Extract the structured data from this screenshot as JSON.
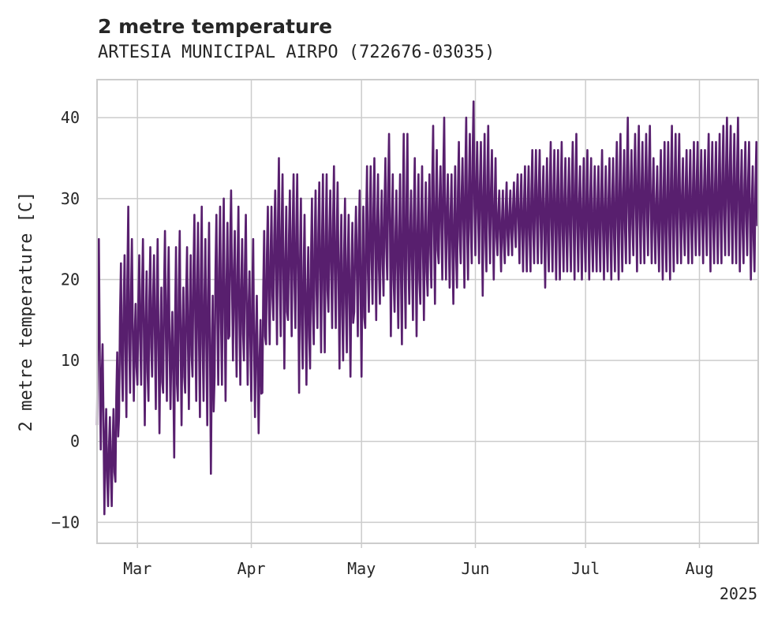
{
  "chart_data": {
    "type": "line",
    "title": "2 metre temperature",
    "subtitle": "ARTESIA MUNICIPAL AIRPO (722676-03035)",
    "ylabel": "2 metre temperature [C]",
    "xlabel": "",
    "xlim": [
      "2025-02-18",
      "2025-08-17"
    ],
    "ylim": [
      -12.6,
      44.7
    ],
    "grid": true,
    "line_color": "#581f6e",
    "x_ticks": [
      {
        "date": "2025-03-01",
        "label": "Mar"
      },
      {
        "date": "2025-04-01",
        "label": "Apr"
      },
      {
        "date": "2025-05-01",
        "label": "May"
      },
      {
        "date": "2025-06-01",
        "label": "Jun"
      },
      {
        "date": "2025-07-01",
        "label": "Jul"
      },
      {
        "date": "2025-08-01",
        "label": "Aug"
      }
    ],
    "x_offset_label": "2025",
    "y_ticks": [
      -10,
      0,
      10,
      20,
      30,
      40
    ],
    "series": [
      {
        "x": [
          "2025-02-18",
          "2025-02-19",
          "2025-02-20",
          "2025-02-21",
          "2025-02-22",
          "2025-02-23",
          "2025-02-24",
          "2025-02-25",
          "2025-02-26",
          "2025-02-27",
          "2025-02-28",
          "2025-03-01",
          "2025-03-02",
          "2025-03-03",
          "2025-03-04",
          "2025-03-05",
          "2025-03-06",
          "2025-03-07",
          "2025-03-08",
          "2025-03-09",
          "2025-03-10",
          "2025-03-11",
          "2025-03-12",
          "2025-03-13",
          "2025-03-14",
          "2025-03-15",
          "2025-03-16",
          "2025-03-17",
          "2025-03-18",
          "2025-03-19",
          "2025-03-20",
          "2025-03-21",
          "2025-03-22",
          "2025-03-23",
          "2025-03-24",
          "2025-03-25",
          "2025-03-26",
          "2025-03-27",
          "2025-03-28",
          "2025-03-29",
          "2025-03-30",
          "2025-03-31",
          "2025-04-01",
          "2025-04-02",
          "2025-04-03",
          "2025-04-04",
          "2025-04-05",
          "2025-04-06",
          "2025-04-07",
          "2025-04-08",
          "2025-04-09",
          "2025-04-10",
          "2025-04-11",
          "2025-04-12",
          "2025-04-13",
          "2025-04-14",
          "2025-04-15",
          "2025-04-16",
          "2025-04-17",
          "2025-04-18",
          "2025-04-19",
          "2025-04-20",
          "2025-04-21",
          "2025-04-22",
          "2025-04-23",
          "2025-04-24",
          "2025-04-25",
          "2025-04-26",
          "2025-04-27",
          "2025-04-28",
          "2025-04-29",
          "2025-04-30",
          "2025-05-01",
          "2025-05-02",
          "2025-05-03",
          "2025-05-04",
          "2025-05-05",
          "2025-05-06",
          "2025-05-07",
          "2025-05-08",
          "2025-05-09",
          "2025-05-10",
          "2025-05-11",
          "2025-05-12",
          "2025-05-13",
          "2025-05-14",
          "2025-05-15",
          "2025-05-16",
          "2025-05-17",
          "2025-05-18",
          "2025-05-19",
          "2025-05-20",
          "2025-05-21",
          "2025-05-22",
          "2025-05-23",
          "2025-05-24",
          "2025-05-25",
          "2025-05-26",
          "2025-05-27",
          "2025-05-28",
          "2025-05-29",
          "2025-05-30",
          "2025-05-31",
          "2025-06-01",
          "2025-06-02",
          "2025-06-03",
          "2025-06-04",
          "2025-06-05",
          "2025-06-06",
          "2025-06-07",
          "2025-06-08",
          "2025-06-09",
          "2025-06-10",
          "2025-06-11",
          "2025-06-12",
          "2025-06-13",
          "2025-06-14",
          "2025-06-15",
          "2025-06-16",
          "2025-06-17",
          "2025-06-18",
          "2025-06-19",
          "2025-06-20",
          "2025-06-21",
          "2025-06-22",
          "2025-06-23",
          "2025-06-24",
          "2025-06-25",
          "2025-06-26",
          "2025-06-27",
          "2025-06-28",
          "2025-06-29",
          "2025-06-30",
          "2025-07-01",
          "2025-07-02",
          "2025-07-03",
          "2025-07-04",
          "2025-07-05",
          "2025-07-06",
          "2025-07-07",
          "2025-07-08",
          "2025-07-09",
          "2025-07-10",
          "2025-07-11",
          "2025-07-12",
          "2025-07-13",
          "2025-07-14",
          "2025-07-15",
          "2025-07-16",
          "2025-07-17",
          "2025-07-18",
          "2025-07-19",
          "2025-07-20",
          "2025-07-21",
          "2025-07-22",
          "2025-07-23",
          "2025-07-24",
          "2025-07-25",
          "2025-07-26",
          "2025-07-27",
          "2025-07-28",
          "2025-07-29",
          "2025-07-30",
          "2025-07-31",
          "2025-08-01",
          "2025-08-02",
          "2025-08-03",
          "2025-08-04",
          "2025-08-05",
          "2025-08-06",
          "2025-08-07",
          "2025-08-08",
          "2025-08-09",
          "2025-08-10",
          "2025-08-11",
          "2025-08-12",
          "2025-08-13",
          "2025-08-14",
          "2025-08-15",
          "2025-08-16"
        ],
        "min": [
          2,
          -1,
          -9,
          -8,
          -8,
          -5,
          3,
          5,
          3,
          6,
          5,
          7,
          7,
          2,
          5,
          8,
          4,
          1,
          6,
          5,
          4,
          -2,
          5,
          2,
          6,
          4,
          8,
          5,
          3,
          5,
          2,
          -4,
          8,
          7,
          7,
          5,
          13,
          10,
          8,
          7,
          10,
          7,
          5,
          3,
          1,
          6,
          12,
          12,
          15,
          12,
          13,
          9,
          15,
          13,
          14,
          6,
          9,
          7,
          9,
          12,
          14,
          11,
          11,
          16,
          14,
          14,
          9,
          10,
          11,
          8,
          16,
          13,
          8,
          14,
          16,
          17,
          15,
          17,
          18,
          20,
          13,
          16,
          14,
          12,
          14,
          17,
          15,
          13,
          17,
          15,
          18,
          19,
          17,
          22,
          20,
          20,
          19,
          17,
          19,
          22,
          19,
          20,
          22,
          23,
          22,
          18,
          21,
          22,
          20,
          23,
          21,
          22,
          23,
          23,
          24,
          22,
          21,
          21,
          21,
          22,
          22,
          22,
          19,
          21,
          21,
          20,
          20,
          21,
          21,
          21,
          20,
          21,
          20,
          21,
          20,
          21,
          21,
          21,
          20,
          21,
          20,
          21,
          20,
          21,
          22,
          22,
          23,
          21,
          22,
          22,
          23,
          22,
          22,
          21,
          20,
          21,
          20,
          21,
          22,
          22,
          23,
          22,
          22,
          23,
          23,
          22,
          23,
          21,
          22,
          22,
          22,
          23,
          23,
          22,
          22,
          21,
          22,
          23,
          20,
          21
        ],
        "max": [
          25,
          12,
          4,
          3,
          4,
          11,
          22,
          23,
          29,
          25,
          17,
          23,
          25,
          21,
          24,
          23,
          25,
          19,
          26,
          24,
          16,
          24,
          26,
          19,
          24,
          23,
          28,
          27,
          29,
          25,
          27,
          18,
          28,
          29,
          30,
          27,
          31,
          26,
          29,
          25,
          28,
          21,
          25,
          18,
          15,
          26,
          29,
          29,
          31,
          35,
          33,
          29,
          31,
          33,
          33,
          30,
          28,
          24,
          30,
          31,
          32,
          33,
          33,
          31,
          34,
          32,
          28,
          30,
          28,
          27,
          29,
          31,
          29,
          34,
          34,
          35,
          33,
          31,
          35,
          38,
          33,
          31,
          33,
          38,
          38,
          31,
          35,
          33,
          34,
          32,
          33,
          39,
          36,
          34,
          40,
          33,
          33,
          34,
          37,
          35,
          40,
          38,
          42,
          37,
          37,
          38,
          39,
          36,
          35,
          31,
          31,
          32,
          31,
          32,
          33,
          33,
          34,
          34,
          36,
          36,
          36,
          34,
          35,
          37,
          36,
          36,
          37,
          35,
          35,
          37,
          38,
          34,
          35,
          36,
          35,
          34,
          34,
          36,
          34,
          35,
          35,
          37,
          38,
          36,
          40,
          36,
          38,
          39,
          37,
          38,
          39,
          35,
          34,
          36,
          37,
          37,
          39,
          38,
          38,
          35,
          36,
          36,
          37,
          37,
          36,
          36,
          38,
          37,
          37,
          38,
          39,
          40,
          39,
          38,
          40,
          36,
          37,
          37,
          34,
          37
        ]
      }
    ]
  }
}
